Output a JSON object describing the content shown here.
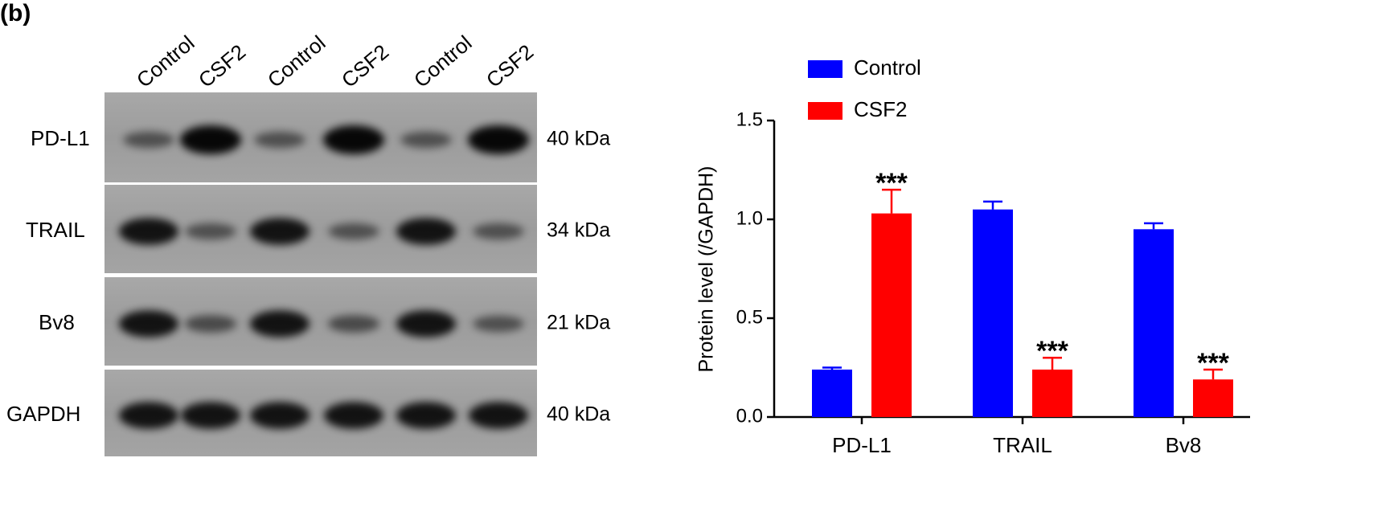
{
  "panel_label": "(b)",
  "blot": {
    "lanes": [
      "Control",
      "CSF2",
      "Control",
      "CSF2",
      "Control",
      "CSF2"
    ],
    "rows": [
      {
        "label": "PD-L1",
        "size": "40 kDa"
      },
      {
        "label": "TRAIL",
        "size": "34 kDa"
      },
      {
        "label": "Bv8",
        "size": "21 kDa"
      },
      {
        "label": "GAPDH",
        "size": "40 kDa"
      }
    ]
  },
  "chart_data": {
    "type": "bar",
    "y_label": "Protein level (/GAPDH)",
    "categories": [
      "PD-L1",
      "TRAIL",
      "Bv8"
    ],
    "series": [
      {
        "name": "Control",
        "color": "#0000ff",
        "values": [
          0.24,
          1.05,
          0.95
        ],
        "errors": [
          0.01,
          0.04,
          0.03
        ]
      },
      {
        "name": "CSF2",
        "color": "#ff0000",
        "values": [
          1.03,
          0.24,
          0.19
        ],
        "errors": [
          0.12,
          0.06,
          0.05
        ],
        "significance": [
          "***",
          "***",
          "***"
        ]
      }
    ],
    "ylim": [
      0,
      1.5
    ],
    "yticks": [
      {
        "value": 0,
        "label": "0.0"
      },
      0.5,
      {
        "value": 1,
        "label": "1.0"
      },
      1.5
    ]
  }
}
